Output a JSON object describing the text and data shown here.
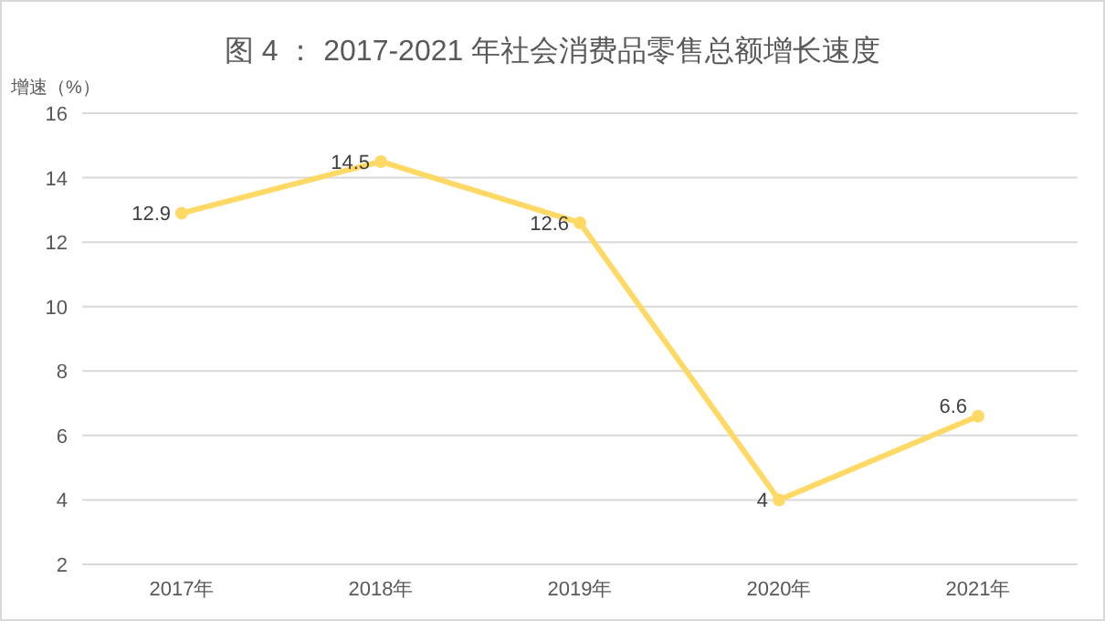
{
  "chart_data": {
    "type": "line",
    "title": "图 4 ： 2017-2021 年社会消费品零售总额增长速度",
    "ylabel": "增速（%）",
    "categories": [
      "2017年",
      "2018年",
      "2019年",
      "2020年",
      "2021年"
    ],
    "series": [
      {
        "color": "#ffd966",
        "values": [
          12.9,
          14.5,
          12.6,
          4,
          6.6
        ]
      }
    ],
    "ylim": [
      2,
      16
    ],
    "yticks": [
      2,
      4,
      6,
      8,
      10,
      12,
      14,
      16
    ],
    "grid": "y",
    "data_labels": true,
    "marker": "circle",
    "line_style": "solid"
  }
}
